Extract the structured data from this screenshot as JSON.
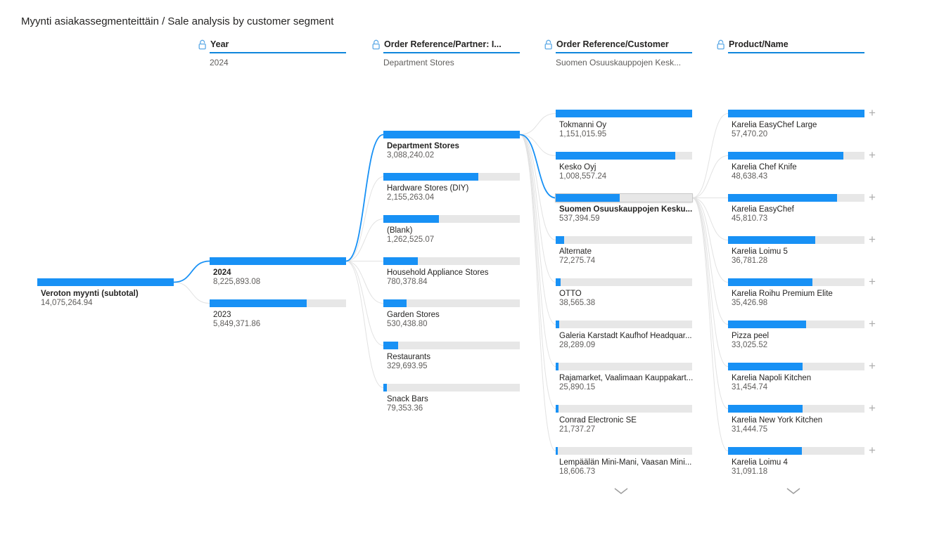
{
  "title": "Myynti asiakassegmenteittäin / Sale analysis by customer segment",
  "icons": {
    "header_lock": "unlocked-padlock",
    "expand_node": "plus",
    "show_more": "chevron-down"
  },
  "colors": {
    "bar_fill": "#1891F5",
    "bar_track": "#E7E7E7",
    "link": "#E2E2E2",
    "link_selected": "#1891F5",
    "header_underline": "#0F86DC",
    "label_text": "#252423",
    "value_text": "#605E5C",
    "lock_icon": "#5CA9E6",
    "expand_icon": "#ABABAB",
    "chevron_icon": "#9E9E9E"
  },
  "chart_data": {
    "type": "bar",
    "variant": "decomposition-tree",
    "title": "Myynti asiakassegmenteittäin / Sale analysis by customer segment",
    "root": {
      "label": "Veroton myynti (subtotal)",
      "value": 14075264.94,
      "text": "14,075,264.94",
      "selected": true
    },
    "levels": [
      {
        "header": "Year",
        "subtitle": "2024",
        "more": false,
        "expand_plus": false,
        "nodes": [
          {
            "label": "2024",
            "value": 8225893.08,
            "text": "8,225,893.08",
            "selected": true
          },
          {
            "label": "2023",
            "value": 5849371.86,
            "text": "5,849,371.86",
            "selected": false
          }
        ]
      },
      {
        "header": "Order Reference/Partner: I...",
        "subtitle": "Department Stores",
        "more": false,
        "expand_plus": false,
        "nodes": [
          {
            "label": "Department Stores",
            "value": 3088240.02,
            "text": "3,088,240.02",
            "selected": true
          },
          {
            "label": "Hardware Stores (DIY)",
            "value": 2155263.04,
            "text": "2,155,263.04",
            "selected": false
          },
          {
            "label": "(Blank)",
            "value": 1262525.07,
            "text": "1,262,525.07",
            "selected": false
          },
          {
            "label": "Household Appliance Stores",
            "value": 780378.84,
            "text": "780,378.84",
            "selected": false
          },
          {
            "label": "Garden Stores",
            "value": 530438.8,
            "text": "530,438.80",
            "selected": false
          },
          {
            "label": "Restaurants",
            "value": 329693.95,
            "text": "329,693.95",
            "selected": false
          },
          {
            "label": "Snack Bars",
            "value": 79353.36,
            "text": "79,353.36",
            "selected": false
          }
        ]
      },
      {
        "header": "Order Reference/Customer",
        "subtitle": "Suomen Osuuskauppojen Kesk...",
        "more": true,
        "expand_plus": false,
        "nodes": [
          {
            "label": "Tokmanni Oy",
            "value": 1151015.95,
            "text": "1,151,015.95",
            "selected": false
          },
          {
            "label": "Kesko Oyj",
            "value": 1008557.24,
            "text": "1,008,557.24",
            "selected": false
          },
          {
            "label": "Suomen Osuuskauppojen Kesku...",
            "value": 537394.59,
            "text": "537,394.59",
            "selected": true
          },
          {
            "label": "Alternate",
            "value": 72275.74,
            "text": "72,275.74",
            "selected": false
          },
          {
            "label": "OTTO",
            "value": 38565.38,
            "text": "38,565.38",
            "selected": false
          },
          {
            "label": "Galeria Karstadt Kaufhof Headquar...",
            "value": 28289.09,
            "text": "28,289.09",
            "selected": false
          },
          {
            "label": "Rajamarket, Vaalimaan Kauppakart...",
            "value": 25890.15,
            "text": "25,890.15",
            "selected": false
          },
          {
            "label": "Conrad Electronic SE",
            "value": 21737.27,
            "text": "21,737.27",
            "selected": false
          },
          {
            "label": "Lempäälän Mini-Mani, Vaasan Mini...",
            "value": 18606.73,
            "text": "18,606.73",
            "selected": false
          }
        ]
      },
      {
        "header": "Product/Name",
        "subtitle": "",
        "more": true,
        "expand_plus": true,
        "nodes": [
          {
            "label": "Karelia EasyChef Large",
            "value": 57470.2,
            "text": "57,470.20",
            "selected": false
          },
          {
            "label": "Karelia Chef Knife",
            "value": 48638.43,
            "text": "48,638.43",
            "selected": false
          },
          {
            "label": "Karelia EasyChef",
            "value": 45810.73,
            "text": "45,810.73",
            "selected": false
          },
          {
            "label": "Karelia Loimu 5",
            "value": 36781.28,
            "text": "36,781.28",
            "selected": false
          },
          {
            "label": "Karelia Roihu Premium Elite",
            "value": 35426.98,
            "text": "35,426.98",
            "selected": false
          },
          {
            "label": "Pizza peel",
            "value": 33025.52,
            "text": "33,025.52",
            "selected": false
          },
          {
            "label": "Karelia Napoli Kitchen",
            "value": 31454.74,
            "text": "31,454.74",
            "selected": false
          },
          {
            "label": "Karelia New York Kitchen",
            "value": 31444.75,
            "text": "31,444.75",
            "selected": false
          },
          {
            "label": "Karelia Loimu 4",
            "value": 31091.18,
            "text": "31,091.18",
            "selected": false
          }
        ]
      }
    ]
  }
}
